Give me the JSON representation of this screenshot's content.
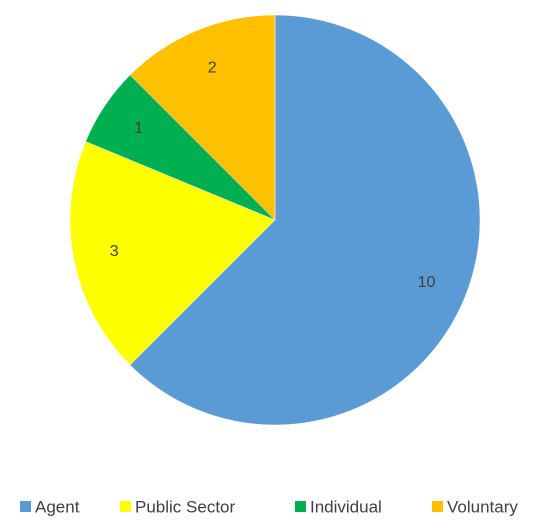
{
  "chart_data": {
    "type": "pie",
    "categories": [
      "Agent",
      "Public Sector",
      "Individual",
      "Voluntary"
    ],
    "values": [
      10,
      3,
      1,
      2
    ],
    "colors": [
      "#5b9bd5",
      "#ffff00",
      "#00b050",
      "#ffc000"
    ],
    "legend": "bottom"
  }
}
